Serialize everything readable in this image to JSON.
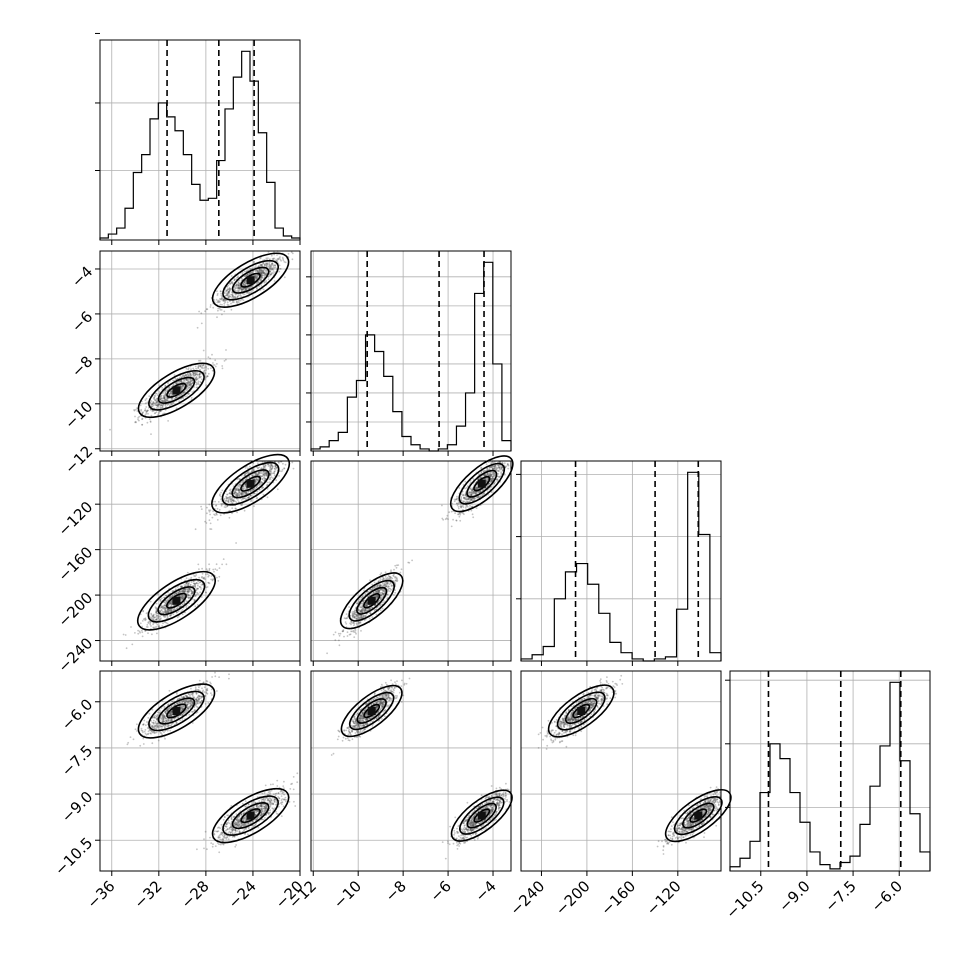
{
  "chart_data": {
    "type": "corner",
    "parameters": [
      {
        "range": [
          -37,
          -20
        ],
        "ticks": [
          -36,
          -32,
          -28,
          -24,
          -20
        ],
        "tick_labels": [
          "−36",
          "−32",
          "−28",
          "−24",
          "−20"
        ],
        "quantiles": [
          -31.3,
          -26.9,
          -23.9
        ],
        "hist": [
          0.01,
          0.03,
          0.06,
          0.16,
          0.34,
          0.43,
          0.61,
          0.69,
          0.62,
          0.55,
          0.43,
          0.28,
          0.2,
          0.21,
          0.4,
          0.66,
          0.82,
          0.95,
          0.8,
          0.54,
          0.29,
          0.06,
          0.02,
          0.01
        ]
      },
      {
        "range": [
          -12.1,
          -3.2
        ],
        "ticks": [
          -12,
          -10,
          -8,
          -6,
          -4
        ],
        "tick_labels": [
          "−12",
          "−10",
          "−8",
          "−6",
          "−4"
        ],
        "quantiles": [
          -9.6,
          -6.4,
          -4.4
        ],
        "hist": [
          0.01,
          0.02,
          0.05,
          0.09,
          0.26,
          0.34,
          0.56,
          0.48,
          0.36,
          0.19,
          0.07,
          0.03,
          0.01,
          0.0,
          0.01,
          0.03,
          0.12,
          0.28,
          0.76,
          0.91,
          0.42,
          0.05
        ]
      },
      {
        "range": [
          -258,
          -82
        ],
        "ticks": [
          -240,
          -200,
          -160,
          -120
        ],
        "tick_labels": [
          "−240",
          "−200",
          "−160",
          "−120"
        ],
        "quantiles": [
          -210,
          -140,
          -102
        ],
        "hist": [
          0.01,
          0.03,
          0.07,
          0.3,
          0.43,
          0.47,
          0.37,
          0.23,
          0.09,
          0.04,
          0.01,
          0.0,
          0.01,
          0.02,
          0.25,
          0.91,
          0.61,
          0.04
        ]
      },
      {
        "range": [
          -11.5,
          -5.0
        ],
        "ticks": [
          -10.5,
          -9.0,
          -7.5,
          -6.0
        ],
        "tick_labels": [
          "−10.5",
          "−9.0",
          "−7.5",
          "−6.0"
        ],
        "quantiles": [
          -10.25,
          -7.9,
          -5.95
        ],
        "hist": [
          0.02,
          0.06,
          0.14,
          0.37,
          0.6,
          0.53,
          0.37,
          0.23,
          0.09,
          0.03,
          0.01,
          0.04,
          0.07,
          0.22,
          0.4,
          0.59,
          0.89,
          0.52,
          0.27,
          0.09
        ]
      }
    ],
    "histogram_yticks": [
      [
        0.35,
        0.69,
        1.04
      ],
      [
        0.14,
        0.28,
        0.42,
        0.56,
        0.7,
        0.84
      ],
      [
        0.3,
        0.6,
        0.9
      ],
      [
        0.3,
        0.6,
        0.9
      ]
    ],
    "grid": true,
    "modes": [
      {
        "values": [
          -30.5,
          -9.4,
          -205,
          -6.3
        ]
      },
      {
        "values": [
          -24.2,
          -4.5,
          -102,
          -9.7
        ]
      }
    ]
  }
}
